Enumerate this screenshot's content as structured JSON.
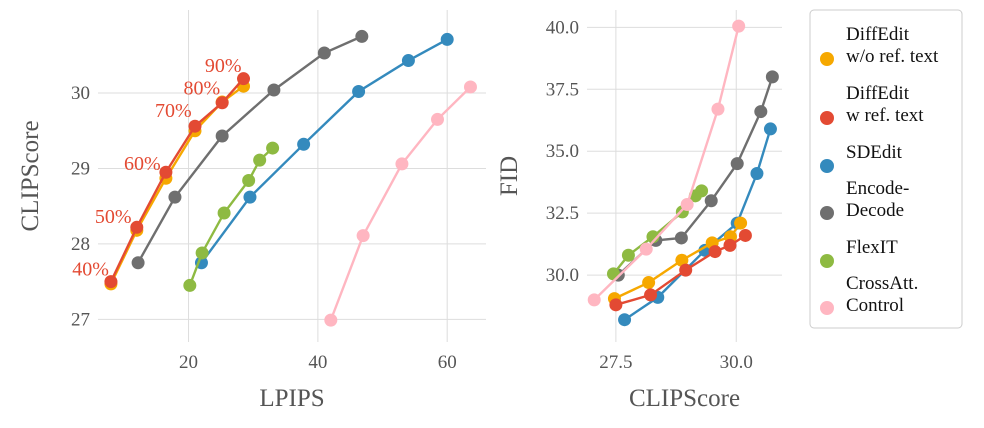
{
  "colors": {
    "DiffEdit w/o ref. text": "#f6a800",
    "DiffEdit w ref. text": "#e34a33",
    "SDEdit": "#348abd",
    "Encode-Decode": "#6f6f6f",
    "FlexIT": "#8eba42",
    "CrossAtt. Control": "#ffb6c1",
    "panel_bg": "#ffffff",
    "grid": "#dddddd"
  },
  "legend": {
    "position": "right",
    "entries": [
      {
        "key": "DiffEdit w/o ref. text",
        "lines": [
          "DiffEdit",
          "w/o ref. text"
        ]
      },
      {
        "key": "DiffEdit w ref. text",
        "lines": [
          "DiffEdit",
          "w ref. text"
        ]
      },
      {
        "key": "SDEdit",
        "lines": [
          "SDEdit"
        ]
      },
      {
        "key": "Encode-Decode",
        "lines": [
          "Encode-",
          "Decode"
        ]
      },
      {
        "key": "FlexIT",
        "lines": [
          "FlexIT"
        ]
      },
      {
        "key": "CrossAtt. Control",
        "lines": [
          "CrossAtt.",
          "Control"
        ]
      }
    ]
  },
  "chart_data": [
    {
      "type": "line",
      "xlabel": "LPIPS",
      "ylabel": "CLIPScore",
      "xlim": [
        6,
        66
      ],
      "ylim": [
        26.7,
        31.1
      ],
      "xticks": [
        20,
        40,
        60
      ],
      "yticks": [
        27,
        28,
        29,
        30
      ],
      "grid": true,
      "annotations": [
        {
          "text": "40%",
          "x": 8.0,
          "y": 27.5
        },
        {
          "text": "50%",
          "x": 11.5,
          "y": 28.2
        },
        {
          "text": "60%",
          "x": 16.0,
          "y": 28.9
        },
        {
          "text": "70%",
          "x": 20.8,
          "y": 29.6
        },
        {
          "text": "80%",
          "x": 25.2,
          "y": 29.9
        },
        {
          "text": "90%",
          "x": 28.5,
          "y": 30.2
        }
      ],
      "series": [
        {
          "name": "Encode-Decode",
          "x": [
            12.2,
            17.9,
            25.2,
            33.2,
            41.0,
            46.8
          ],
          "y": [
            27.75,
            28.62,
            29.43,
            30.04,
            30.53,
            30.75
          ]
        },
        {
          "name": "SDEdit",
          "x": [
            22.0,
            29.5,
            37.8,
            46.3,
            54.0,
            60.0
          ],
          "y": [
            27.75,
            28.62,
            29.32,
            30.02,
            30.43,
            30.71
          ]
        },
        {
          "name": "FlexIT",
          "x": [
            20.2,
            22.1,
            25.5,
            29.3,
            31.0,
            33.0
          ],
          "y": [
            27.45,
            27.88,
            28.41,
            28.84,
            29.11,
            29.27
          ]
        },
        {
          "name": "CrossAtt. Control",
          "x": [
            42.0,
            47.0,
            53.0,
            58.5,
            63.6
          ],
          "y": [
            26.99,
            28.11,
            29.06,
            29.65,
            30.08
          ]
        },
        {
          "name": "DiffEdit w/o ref. text",
          "x": [
            8.0,
            12.0,
            16.5,
            21.0,
            25.2,
            28.5
          ],
          "y": [
            27.47,
            28.18,
            28.87,
            29.5,
            29.88,
            30.09
          ]
        },
        {
          "name": "DiffEdit w ref. text",
          "x": [
            8.0,
            12.0,
            16.5,
            21.0,
            25.2,
            28.5
          ],
          "y": [
            27.5,
            28.22,
            28.95,
            29.56,
            29.87,
            30.19
          ]
        }
      ]
    },
    {
      "type": "line",
      "xlabel": "CLIPScore",
      "ylabel": "FID",
      "xlim": [
        26.9,
        30.95
      ],
      "ylim": [
        27.3,
        40.7
      ],
      "xticks": [
        27.5,
        30.0
      ],
      "yticks": [
        30.0,
        32.5,
        35.0,
        37.5,
        40.0
      ],
      "grid": true,
      "series": [
        {
          "name": "Encode-Decode",
          "x": [
            27.55,
            28.33,
            28.86,
            29.48,
            30.02,
            30.51,
            30.75
          ],
          "y": [
            30.0,
            31.4,
            31.5,
            33.0,
            34.5,
            36.6,
            38.0
          ]
        },
        {
          "name": "SDEdit",
          "x": [
            27.68,
            28.37,
            29.35,
            30.02,
            30.43,
            30.71
          ],
          "y": [
            28.2,
            29.1,
            31.0,
            32.1,
            34.1,
            35.9
          ]
        },
        {
          "name": "FlexIT",
          "x": [
            27.45,
            27.76,
            28.27,
            28.88,
            29.15,
            29.28
          ],
          "y": [
            30.05,
            30.8,
            31.55,
            32.55,
            33.2,
            33.4
          ]
        },
        {
          "name": "CrossAtt. Control",
          "x": [
            27.05,
            28.13,
            28.98,
            29.62,
            30.05
          ],
          "y": [
            29.0,
            31.05,
            32.85,
            36.7,
            40.05
          ]
        },
        {
          "name": "DiffEdit w/o ref. text",
          "x": [
            27.47,
            28.18,
            28.87,
            29.5,
            29.88,
            30.09
          ],
          "y": [
            29.05,
            29.7,
            30.6,
            31.3,
            31.55,
            32.1
          ]
        },
        {
          "name": "DiffEdit w ref. text",
          "x": [
            27.5,
            28.22,
            28.95,
            29.56,
            29.87,
            30.19
          ],
          "y": [
            28.8,
            29.2,
            30.2,
            30.95,
            31.2,
            31.6
          ]
        }
      ]
    }
  ]
}
